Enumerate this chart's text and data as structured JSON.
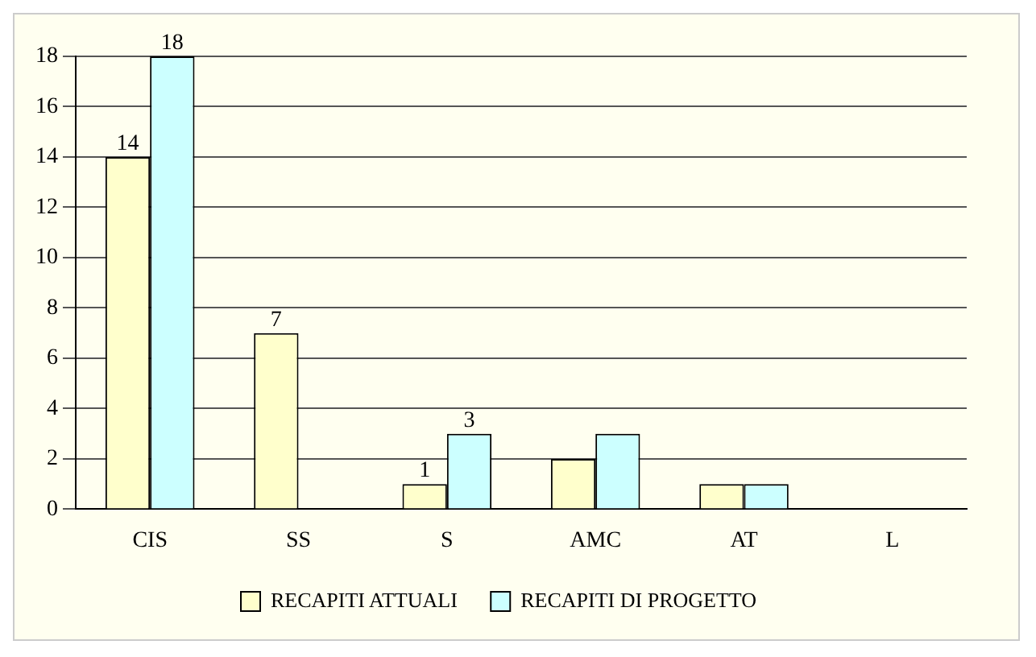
{
  "chart_data": {
    "type": "bar",
    "categories": [
      "CIS",
      "SS",
      "S",
      "AMC",
      "AT",
      "L"
    ],
    "series": [
      {
        "name": "RECAPITI ATTUALI",
        "color": "#ffffcc",
        "values": [
          14,
          7,
          1,
          2,
          1,
          0
        ],
        "value_labels": [
          "14",
          "7",
          "1",
          null,
          null,
          null
        ]
      },
      {
        "name": "RECAPITI DI PROGETTO",
        "color": "#ccffff",
        "values": [
          18,
          0,
          3,
          3,
          1,
          0
        ],
        "value_labels": [
          "18",
          null,
          "3",
          null,
          null,
          null
        ]
      }
    ],
    "ylim": [
      0,
      18
    ],
    "yticks": [
      0,
      2,
      4,
      6,
      8,
      10,
      12,
      14,
      16,
      18
    ],
    "grid": "y",
    "legend": "bottom"
  }
}
